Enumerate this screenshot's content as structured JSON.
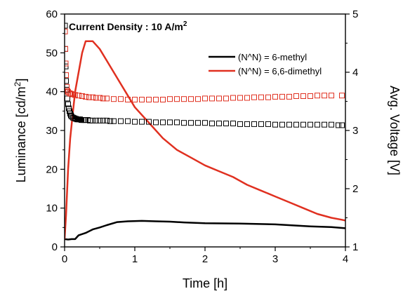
{
  "chart_data": {
    "type": "line",
    "annotation": {
      "prefix": "Current Density : 10 A/m",
      "sup": "2"
    },
    "xlabel": "Time [h]",
    "ylabel_left": {
      "prefix": "Luminance [cd/m",
      "sup": "2",
      "suffix": "]"
    },
    "ylabel_right": "Avg. Voltage [V]",
    "xlim": [
      0,
      4
    ],
    "ylim_left": [
      0,
      60
    ],
    "ylim_right": [
      1,
      5
    ],
    "x_ticks": [
      "0",
      "1",
      "2",
      "3",
      "4"
    ],
    "y_left_ticks": [
      "0",
      "10",
      "20",
      "30",
      "40",
      "50",
      "60"
    ],
    "y_right_ticks": [
      "1",
      "2",
      "3",
      "4",
      "5"
    ],
    "legend_position": "top-right",
    "grid": false,
    "series": [
      {
        "name": "(N^N) = 6-methyl",
        "color": "#000000",
        "axis": "left",
        "style": "line",
        "points": [
          [
            0,
            2
          ],
          [
            0.05,
            1.9
          ],
          [
            0.1,
            2
          ],
          [
            0.15,
            2
          ],
          [
            0.2,
            3
          ],
          [
            0.3,
            3.6
          ],
          [
            0.4,
            4.5
          ],
          [
            0.5,
            5
          ],
          [
            0.6,
            5.6
          ],
          [
            0.75,
            6.4
          ],
          [
            0.9,
            6.6
          ],
          [
            1.1,
            6.7
          ],
          [
            1.3,
            6.6
          ],
          [
            1.5,
            6.5
          ],
          [
            1.7,
            6.3
          ],
          [
            2,
            6.1
          ],
          [
            2.5,
            6
          ],
          [
            3,
            5.8
          ],
          [
            3.5,
            5.3
          ],
          [
            3.8,
            5.1
          ],
          [
            4,
            4.8
          ]
        ]
      },
      {
        "name": "(N^N) = 6,6-dimethyl",
        "color": "#e03020",
        "axis": "left",
        "style": "line",
        "points": [
          [
            0,
            2
          ],
          [
            0.02,
            8
          ],
          [
            0.05,
            20
          ],
          [
            0.08,
            28
          ],
          [
            0.12,
            35
          ],
          [
            0.15,
            40
          ],
          [
            0.2,
            45
          ],
          [
            0.25,
            50
          ],
          [
            0.3,
            53
          ],
          [
            0.4,
            53
          ],
          [
            0.5,
            51
          ],
          [
            0.6,
            48
          ],
          [
            0.7,
            45
          ],
          [
            0.8,
            42
          ],
          [
            0.9,
            39
          ],
          [
            1,
            36
          ],
          [
            1.2,
            32
          ],
          [
            1.4,
            28
          ],
          [
            1.6,
            25
          ],
          [
            1.8,
            23
          ],
          [
            2,
            21
          ],
          [
            2.2,
            19.5
          ],
          [
            2.4,
            18
          ],
          [
            2.6,
            16
          ],
          [
            2.8,
            14.5
          ],
          [
            3,
            13
          ],
          [
            3.2,
            11.5
          ],
          [
            3.4,
            10
          ],
          [
            3.6,
            8.5
          ],
          [
            3.8,
            7.5
          ],
          [
            3.95,
            7
          ],
          [
            4,
            6.8
          ]
        ]
      },
      {
        "name": "",
        "color": "#000000",
        "axis": "right",
        "style": "open-square",
        "points": [
          [
            0.005,
            4.8
          ],
          [
            0.01,
            4.4
          ],
          [
            0.015,
            4.1
          ],
          [
            0.02,
            3.85
          ],
          [
            0.03,
            3.7
          ],
          [
            0.04,
            3.55
          ],
          [
            0.05,
            3.45
          ],
          [
            0.06,
            3.38
          ],
          [
            0.07,
            3.33
          ],
          [
            0.08,
            3.29
          ],
          [
            0.09,
            3.26
          ],
          [
            0.1,
            3.24
          ],
          [
            0.12,
            3.22
          ],
          [
            0.14,
            3.21
          ],
          [
            0.16,
            3.2
          ],
          [
            0.18,
            3.19
          ],
          [
            0.2,
            3.19
          ],
          [
            0.22,
            3.19
          ],
          [
            0.24,
            3.18
          ],
          [
            0.26,
            3.18
          ],
          [
            0.28,
            3.18
          ],
          [
            0.3,
            3.18
          ],
          [
            0.33,
            3.18
          ],
          [
            0.36,
            3.17
          ],
          [
            0.4,
            3.17
          ],
          [
            0.45,
            3.17
          ],
          [
            0.5,
            3.17
          ],
          [
            0.55,
            3.17
          ],
          [
            0.6,
            3.17
          ],
          [
            0.65,
            3.16
          ],
          [
            0.7,
            3.16
          ],
          [
            0.8,
            3.16
          ],
          [
            0.9,
            3.16
          ],
          [
            1,
            3.15
          ],
          [
            1.1,
            3.15
          ],
          [
            1.2,
            3.15
          ],
          [
            1.3,
            3.14
          ],
          [
            1.4,
            3.14
          ],
          [
            1.5,
            3.14
          ],
          [
            1.6,
            3.14
          ],
          [
            1.7,
            3.13
          ],
          [
            1.8,
            3.13
          ],
          [
            1.9,
            3.13
          ],
          [
            2,
            3.13
          ],
          [
            2.1,
            3.12
          ],
          [
            2.2,
            3.12
          ],
          [
            2.3,
            3.12
          ],
          [
            2.4,
            3.12
          ],
          [
            2.5,
            3.11
          ],
          [
            2.6,
            3.11
          ],
          [
            2.7,
            3.11
          ],
          [
            2.8,
            3.11
          ],
          [
            2.9,
            3.11
          ],
          [
            3,
            3.1
          ],
          [
            3.1,
            3.1
          ],
          [
            3.2,
            3.1
          ],
          [
            3.3,
            3.1
          ],
          [
            3.4,
            3.1
          ],
          [
            3.5,
            3.1
          ],
          [
            3.6,
            3.1
          ],
          [
            3.7,
            3.1
          ],
          [
            3.8,
            3.1
          ],
          [
            3.9,
            3.09
          ],
          [
            3.95,
            3.09
          ]
        ]
      },
      {
        "name": "",
        "color": "#e03020",
        "axis": "right",
        "style": "open-square",
        "points": [
          [
            0.005,
            4.7
          ],
          [
            0.01,
            4.4
          ],
          [
            0.015,
            4.15
          ],
          [
            0.02,
            3.95
          ],
          [
            0.03,
            3.75
          ],
          [
            0.04,
            3.68
          ],
          [
            0.05,
            3.66
          ],
          [
            0.07,
            3.64
          ],
          [
            0.09,
            3.63
          ],
          [
            0.12,
            3.62
          ],
          [
            0.15,
            3.61
          ],
          [
            0.2,
            3.6
          ],
          [
            0.25,
            3.59
          ],
          [
            0.3,
            3.58
          ],
          [
            0.35,
            3.57
          ],
          [
            0.4,
            3.57
          ],
          [
            0.45,
            3.56
          ],
          [
            0.5,
            3.56
          ],
          [
            0.55,
            3.55
          ],
          [
            0.6,
            3.55
          ],
          [
            0.7,
            3.54
          ],
          [
            0.8,
            3.54
          ],
          [
            0.9,
            3.53
          ],
          [
            1,
            3.53
          ],
          [
            1.1,
            3.53
          ],
          [
            1.2,
            3.53
          ],
          [
            1.3,
            3.53
          ],
          [
            1.4,
            3.53
          ],
          [
            1.5,
            3.54
          ],
          [
            1.6,
            3.54
          ],
          [
            1.7,
            3.54
          ],
          [
            1.8,
            3.54
          ],
          [
            1.9,
            3.54
          ],
          [
            2,
            3.55
          ],
          [
            2.1,
            3.55
          ],
          [
            2.2,
            3.55
          ],
          [
            2.3,
            3.55
          ],
          [
            2.4,
            3.56
          ],
          [
            2.5,
            3.56
          ],
          [
            2.6,
            3.56
          ],
          [
            2.7,
            3.57
          ],
          [
            2.8,
            3.57
          ],
          [
            2.9,
            3.57
          ],
          [
            3,
            3.58
          ],
          [
            3.1,
            3.58
          ],
          [
            3.2,
            3.58
          ],
          [
            3.3,
            3.59
          ],
          [
            3.4,
            3.59
          ],
          [
            3.5,
            3.59
          ],
          [
            3.6,
            3.6
          ],
          [
            3.7,
            3.6
          ],
          [
            3.8,
            3.6
          ],
          [
            3.95,
            3.6
          ]
        ]
      }
    ]
  }
}
